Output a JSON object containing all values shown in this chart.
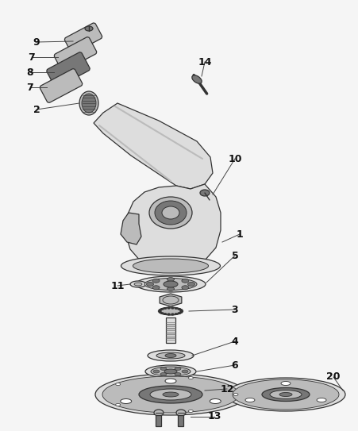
{
  "bg_color": "#f5f5f5",
  "fig_width": 4.52,
  "fig_height": 5.43,
  "dpi": 100
}
